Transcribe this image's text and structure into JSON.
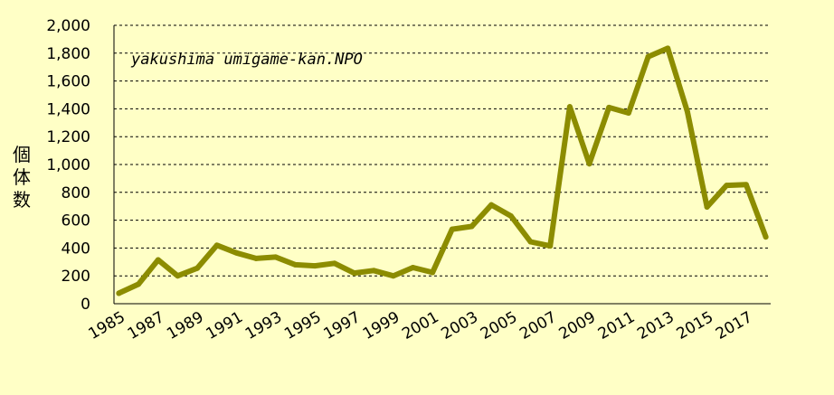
{
  "chart_data": {
    "type": "line",
    "title": "",
    "xlabel": "",
    "ylabel": "個体数",
    "annotation": "yakushima umigame-kan.NPO",
    "ylim": [
      0,
      2000
    ],
    "y_ticks": [
      "0",
      "200",
      "400",
      "600",
      "800",
      "1,000",
      "1,200",
      "1,400",
      "1,600",
      "1,800",
      "2,000"
    ],
    "x_ticks": [
      "1985",
      "1987",
      "1989",
      "1991",
      "1993",
      "1995",
      "1997",
      "1999",
      "2001",
      "2003",
      "2005",
      "2007",
      "2009",
      "2011",
      "2013",
      "2015",
      "2017"
    ],
    "grid": true,
    "legend": "none",
    "line_color": "#8c8c00",
    "series": [
      {
        "x": [
          1985,
          1986,
          1987,
          1988,
          1989,
          1990,
          1991,
          1992,
          1993,
          1994,
          1995,
          1996,
          1997,
          1998,
          1999,
          2000,
          2001,
          2002,
          2003,
          2004,
          2005,
          2006,
          2007,
          2008,
          2009,
          2010,
          2011,
          2012,
          2013,
          2014,
          2015,
          2016,
          2017,
          2018
        ],
        "values": [
          75,
          140,
          315,
          200,
          255,
          420,
          365,
          325,
          335,
          280,
          272,
          290,
          220,
          238,
          200,
          260,
          225,
          535,
          555,
          710,
          630,
          445,
          415,
          1415,
          1005,
          1410,
          1370,
          1775,
          1835,
          1380,
          695,
          850,
          855,
          480
        ]
      }
    ]
  }
}
